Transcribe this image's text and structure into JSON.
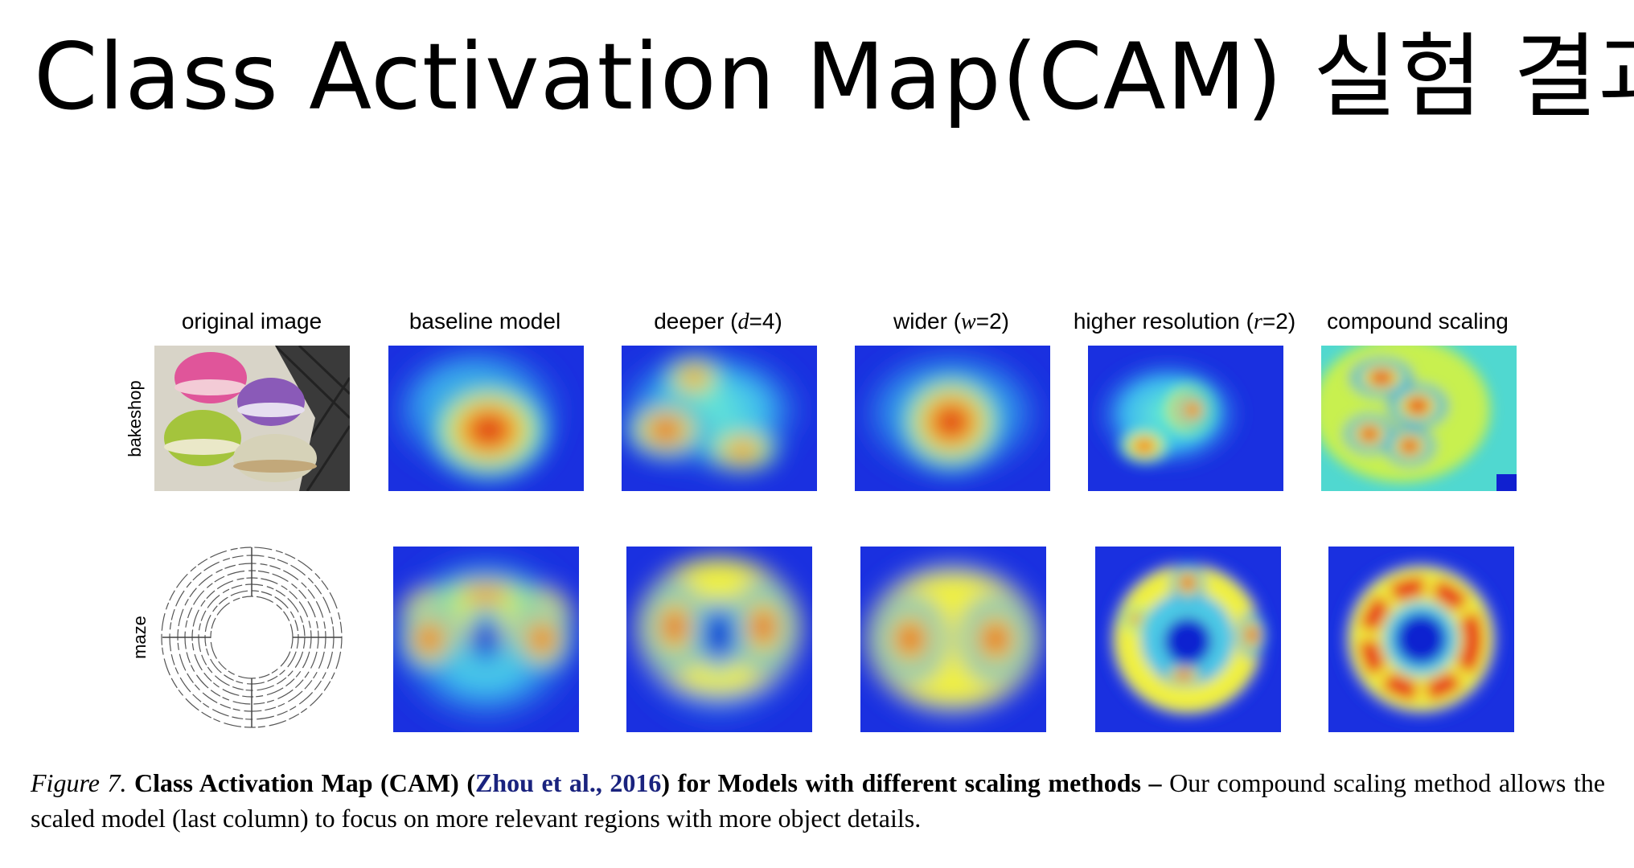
{
  "title": "Class Activation Map(CAM) 실험 결과",
  "columns": {
    "original": "original image",
    "baseline": "baseline model",
    "deeper_pre": "deeper (",
    "deeper_var": "d",
    "deeper_post": "=4)",
    "wider_pre": "wider (",
    "wider_var": "w",
    "wider_post": "=2)",
    "higher_pre": "higher resolution (",
    "higher_var": "r",
    "higher_post": "=2)",
    "compound": "compound scaling"
  },
  "rows": {
    "bakeshop": "bakeshop",
    "maze": "maze"
  },
  "caption": {
    "figure_label": "Figure 7.",
    "bold_title": "Class Activation Map (CAM) (",
    "citation": "Zhou et al., 2016",
    "bold_rest": ") for Models with different scaling methods –",
    "body": " Our compound scaling method allows the scaled model (last column) to focus on more relevant regions with more object details."
  },
  "colors": {
    "jet_low": "#0a0ad0",
    "jet_mid": "#4de8e0",
    "jet_high": "#e8281a"
  }
}
